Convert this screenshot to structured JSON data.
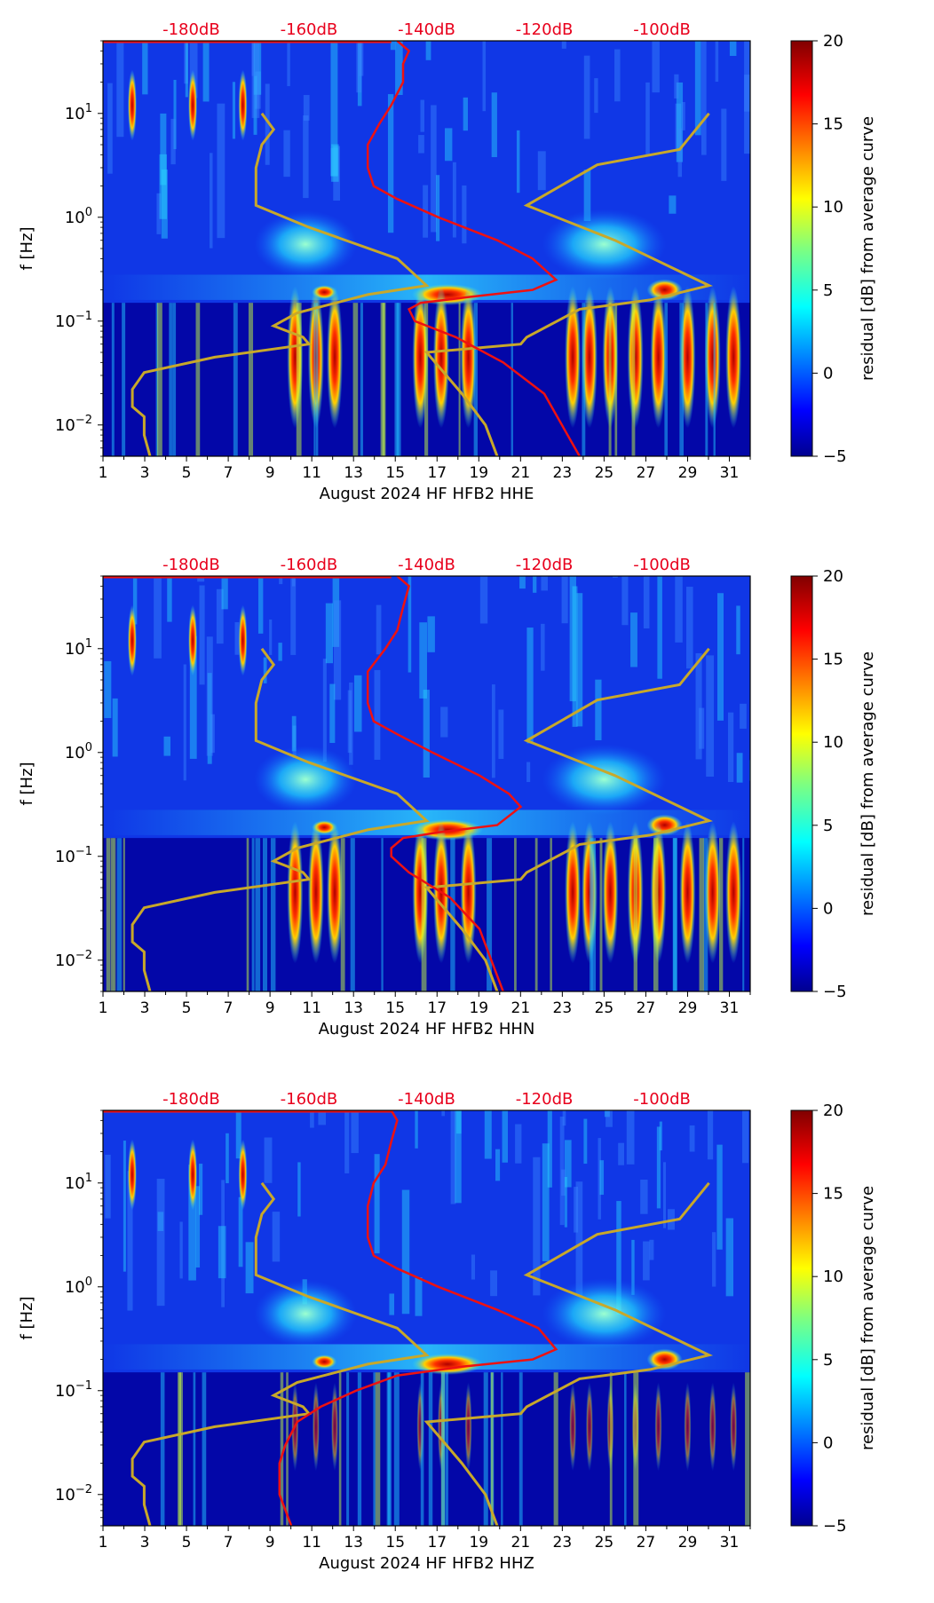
{
  "chart_data": [
    {
      "type": "heatmap",
      "xlabel": "August 2024 HF HFB2  HHE",
      "ylabel": "f [Hz]",
      "x_ticks": [
        "1",
        "3",
        "5",
        "7",
        "9",
        "11",
        "13",
        "15",
        "17",
        "19",
        "21",
        "23",
        "25",
        "27",
        "29",
        "31"
      ],
      "xlim": [
        1,
        32
      ],
      "ylim": [
        0.005,
        50
      ],
      "y_ticks": [
        {
          "label": "10",
          "exp": "−2",
          "value": 0.01
        },
        {
          "label": "10",
          "exp": "−1",
          "value": 0.1
        },
        {
          "label": "10",
          "exp": "0",
          "value": 1
        },
        {
          "label": "10",
          "exp": "1",
          "value": 10
        }
      ],
      "top_axis_labels": [
        "-180dB",
        "-160dB",
        "-140dB",
        "-120dB",
        "-100dB"
      ],
      "top_axis_color": "#e8001c",
      "colorbar": {
        "label": "residual [dB] from average curve",
        "min": -5,
        "max": 20,
        "ticks": [
          "20",
          "15",
          "10",
          "5",
          "0",
          "−5"
        ],
        "colormap": "jet"
      },
      "model_curve_color": "#c8a82a",
      "psd_curve_color": "#ee1111",
      "psd_curve": [
        [
          -145,
          50
        ],
        [
          -143,
          40
        ],
        [
          -144,
          30
        ],
        [
          -144,
          20
        ],
        [
          -146,
          12
        ],
        [
          -148,
          8
        ],
        [
          -150,
          5
        ],
        [
          -150,
          4
        ],
        [
          -150,
          3
        ],
        [
          -149,
          2
        ],
        [
          -145,
          1.5
        ],
        [
          -138,
          1
        ],
        [
          -128,
          0.6
        ],
        [
          -122,
          0.4
        ],
        [
          -118,
          0.25
        ],
        [
          -122,
          0.2
        ],
        [
          -133,
          0.17
        ],
        [
          -141,
          0.15
        ],
        [
          -143,
          0.13
        ],
        [
          -142,
          0.1
        ],
        [
          -135,
          0.07
        ],
        [
          -127,
          0.04
        ],
        [
          -120,
          0.02
        ],
        [
          -117,
          0.01
        ],
        [
          -114,
          0.005
        ]
      ]
    },
    {
      "type": "heatmap",
      "xlabel": "August 2024 HF HFB2  HHN",
      "ylabel": "f [Hz]",
      "x_ticks": [
        "1",
        "3",
        "5",
        "7",
        "9",
        "11",
        "13",
        "15",
        "17",
        "19",
        "21",
        "23",
        "25",
        "27",
        "29",
        "31"
      ],
      "xlim": [
        1,
        32
      ],
      "ylim": [
        0.005,
        50
      ],
      "y_ticks": [
        {
          "label": "10",
          "exp": "−2",
          "value": 0.01
        },
        {
          "label": "10",
          "exp": "−1",
          "value": 0.1
        },
        {
          "label": "10",
          "exp": "0",
          "value": 1
        },
        {
          "label": "10",
          "exp": "1",
          "value": 10
        }
      ],
      "top_axis_labels": [
        "-180dB",
        "-160dB",
        "-140dB",
        "-120dB",
        "-100dB"
      ],
      "top_axis_color": "#e8001c",
      "colorbar": {
        "label": "residual [dB] from average curve",
        "min": -5,
        "max": 20,
        "ticks": [
          "20",
          "15",
          "10",
          "5",
          "0",
          "−5"
        ],
        "colormap": "jet"
      },
      "model_curve_color": "#c8a82a",
      "psd_curve_color": "#ee1111",
      "psd_curve": [
        [
          -145,
          50
        ],
        [
          -143,
          40
        ],
        [
          -144,
          25
        ],
        [
          -145,
          15
        ],
        [
          -147,
          10
        ],
        [
          -150,
          6
        ],
        [
          -150,
          4
        ],
        [
          -150,
          3
        ],
        [
          -149,
          2
        ],
        [
          -145,
          1.5
        ],
        [
          -139,
          1
        ],
        [
          -131,
          0.6
        ],
        [
          -126,
          0.4
        ],
        [
          -124,
          0.3
        ],
        [
          -128,
          0.2
        ],
        [
          -138,
          0.17
        ],
        [
          -144,
          0.15
        ],
        [
          -146,
          0.12
        ],
        [
          -146,
          0.1
        ],
        [
          -143,
          0.07
        ],
        [
          -136,
          0.04
        ],
        [
          -131,
          0.02
        ],
        [
          -129,
          0.01
        ],
        [
          -127,
          0.005
        ]
      ]
    },
    {
      "type": "heatmap",
      "xlabel": "August 2024 HF HFB2  HHZ",
      "ylabel": "f [Hz]",
      "x_ticks": [
        "1",
        "3",
        "5",
        "7",
        "9",
        "11",
        "13",
        "15",
        "17",
        "19",
        "21",
        "23",
        "25",
        "27",
        "29",
        "31"
      ],
      "xlim": [
        1,
        32
      ],
      "ylim": [
        0.005,
        50
      ],
      "y_ticks": [
        {
          "label": "10",
          "exp": "−2",
          "value": 0.01
        },
        {
          "label": "10",
          "exp": "−1",
          "value": 0.1
        },
        {
          "label": "10",
          "exp": "0",
          "value": 1
        },
        {
          "label": "10",
          "exp": "1",
          "value": 10
        }
      ],
      "top_axis_labels": [
        "-180dB",
        "-160dB",
        "-140dB",
        "-120dB",
        "-100dB"
      ],
      "top_axis_color": "#e8001c",
      "colorbar": {
        "label": "residual [dB] from average curve",
        "min": -5,
        "max": 20,
        "ticks": [
          "20",
          "15",
          "10",
          "5",
          "0",
          "−5"
        ],
        "colormap": "jet"
      },
      "model_curve_color": "#c8a82a",
      "psd_curve_color": "#ee1111",
      "psd_curve": [
        [
          -146,
          50
        ],
        [
          -145,
          40
        ],
        [
          -146,
          25
        ],
        [
          -147,
          15
        ],
        [
          -149,
          10
        ],
        [
          -150,
          6
        ],
        [
          -150,
          4
        ],
        [
          -150,
          3
        ],
        [
          -149,
          2
        ],
        [
          -145,
          1.5
        ],
        [
          -138,
          1
        ],
        [
          -128,
          0.6
        ],
        [
          -121,
          0.4
        ],
        [
          -118,
          0.25
        ],
        [
          -122,
          0.2
        ],
        [
          -134,
          0.17
        ],
        [
          -145,
          0.14
        ],
        [
          -152,
          0.1
        ],
        [
          -158,
          0.07
        ],
        [
          -162,
          0.05
        ],
        [
          -164,
          0.03
        ],
        [
          -165,
          0.02
        ],
        [
          -165,
          0.01
        ],
        [
          -163,
          0.005
        ]
      ]
    }
  ],
  "nlnm_curve": [
    [
      -168,
      10
    ],
    [
      -166,
      7
    ],
    [
      -168,
      5
    ],
    [
      -169,
      3
    ],
    [
      -169,
      1.3
    ],
    [
      -160,
      0.8
    ],
    [
      -145,
      0.4
    ],
    [
      -140,
      0.22
    ],
    [
      -150,
      0.18
    ],
    [
      -162,
      0.12
    ],
    [
      -166,
      0.09
    ],
    [
      -161,
      0.07
    ],
    [
      -160,
      0.06
    ],
    [
      -176,
      0.045
    ],
    [
      -188,
      0.032
    ],
    [
      -190,
      0.022
    ],
    [
      -190,
      0.015
    ],
    [
      -188,
      0.012
    ],
    [
      -188,
      0.008
    ],
    [
      -187,
      0.005
    ]
  ],
  "nhnm_curve": [
    [
      -92,
      10
    ],
    [
      -97,
      4.5
    ],
    [
      -111,
      3.2
    ],
    [
      -123,
      1.3
    ],
    [
      -108,
      0.6
    ],
    [
      -92,
      0.22
    ],
    [
      -102,
      0.16
    ],
    [
      -114,
      0.13
    ],
    [
      -123,
      0.07
    ],
    [
      -124,
      0.06
    ],
    [
      -140,
      0.05
    ],
    [
      -134,
      0.02
    ],
    [
      -130,
      0.01
    ],
    [
      -128,
      0.005
    ]
  ]
}
